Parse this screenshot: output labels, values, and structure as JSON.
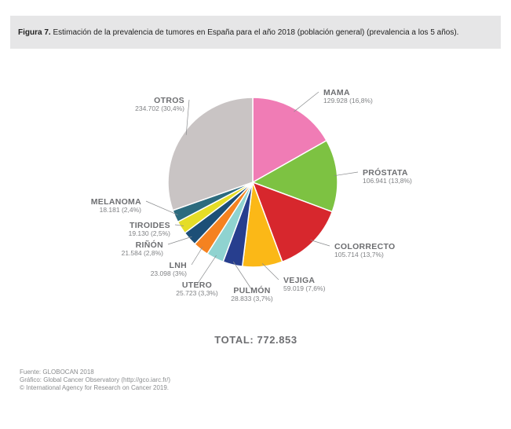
{
  "caption": {
    "figure_label": "Figura 7.",
    "text": " Estimación de la prevalencia de tumores en España para el año 2018 (población general) (prevalencia a los 5 años)."
  },
  "chart_data": {
    "type": "pie",
    "total_label": "TOTAL: 772.853",
    "slices": [
      {
        "name": "MAMA",
        "value_label": "129.928 (16,8%)",
        "value": 129928,
        "percent": 16.8,
        "color": "#f07cb5"
      },
      {
        "name": "PRÓSTATA",
        "value_label": "106.941 (13,8%)",
        "value": 106941,
        "percent": 13.8,
        "color": "#7dc242"
      },
      {
        "name": "COLORRECTO",
        "value_label": "105.714 (13,7%)",
        "value": 105714,
        "percent": 13.7,
        "color": "#d7272d"
      },
      {
        "name": "VEJIGA",
        "value_label": "59.019 (7,6%)",
        "value": 59019,
        "percent": 7.6,
        "color": "#fbb817"
      },
      {
        "name": "PULMÓN",
        "value_label": "28.833 (3,7%)",
        "value": 28833,
        "percent": 3.7,
        "color": "#273e8e"
      },
      {
        "name": "UTERO",
        "value_label": "25.723 (3,3%)",
        "value": 25723,
        "percent": 3.3,
        "color": "#8fd3d0"
      },
      {
        "name": "LNH",
        "value_label": "23.098 (3%)",
        "value": 23098,
        "percent": 3.0,
        "color": "#f58220"
      },
      {
        "name": "RIÑÓN",
        "value_label": "21.584 (2,8%)",
        "value": 21584,
        "percent": 2.8,
        "color": "#1d4f77"
      },
      {
        "name": "TIROIDES",
        "value_label": "19.130 (2,5%)",
        "value": 19130,
        "percent": 2.5,
        "color": "#e5dd27"
      },
      {
        "name": "MELANOMA",
        "value_label": "18.181 (2,4%)",
        "value": 18181,
        "percent": 2.4,
        "color": "#2c6b7e"
      },
      {
        "name": "OTROS",
        "value_label": "234.702 (30,4%)",
        "value": 234702,
        "percent": 30.4,
        "color": "#c9c4c4"
      }
    ]
  },
  "source": {
    "line1": "Fuente: GLOBOCAN 2018",
    "line2": "Gráfico: Global Cancer Observatory (http://gco.iarc.fr/)",
    "line3": "© International Agency for Research on Cancer 2019."
  }
}
